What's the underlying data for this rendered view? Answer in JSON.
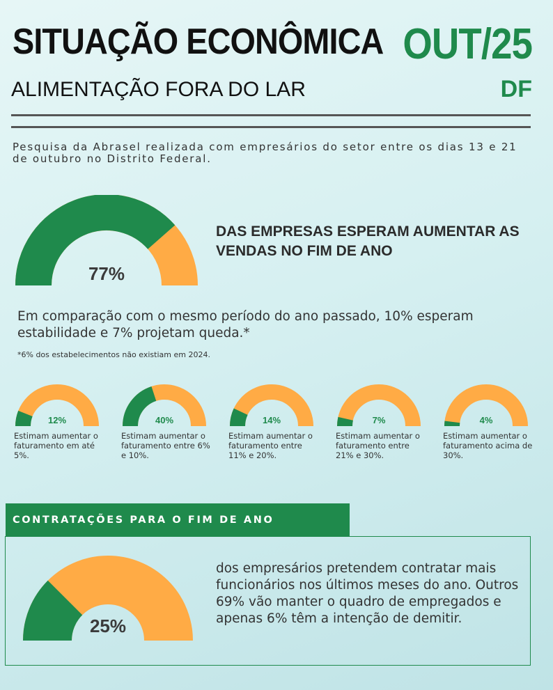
{
  "header": {
    "title": "SITUAÇÃO ECONÔMICA",
    "subtitle": "ALIMENTAÇÃO FORA DO LAR",
    "period": "OUT/25",
    "region": "DF"
  },
  "intro": "Pesquisa da Abrasel realizada com empresários do setor entre os dias 13 e 21 de outubro no Distrito Federal.",
  "colors": {
    "green": "#1f8a4c",
    "orange": "#ffab45"
  },
  "sales": {
    "percent_label": "77%",
    "percent": 77,
    "headline": "DAS EMPRESAS ESPERAM AUMENTAR AS VENDAS NO FIM DE ANO",
    "comparison": "Em comparação com o mesmo período do ano passado, 10% esperam estabilidade e 7% projetam queda.*",
    "footnote": "*6% dos estabelecimentos não existiam em 2024."
  },
  "revenue_gauges": [
    {
      "percent": 12,
      "label": "12%",
      "description": "Estimam aumentar o faturamento em até 5%."
    },
    {
      "percent": 40,
      "label": "40%",
      "description": "Estimam aumentar o faturamento entre 6% e 10%."
    },
    {
      "percent": 14,
      "label": "14%",
      "description": "Estimam aumentar o faturamento entre 11% e 20%."
    },
    {
      "percent": 7,
      "label": "7%",
      "description": "Estimam aumentar o faturamento entre 21% e 30%."
    },
    {
      "percent": 4,
      "label": "4%",
      "description": "Estimam aumentar o faturamento acima de 30%."
    }
  ],
  "hiring": {
    "section_title": "CONTRATAÇÕES PARA O FIM DE ANO",
    "percent_label": "25%",
    "percent": 25,
    "text": "dos empresários pretendem contratar mais funcionários nos últimos meses do ano. Outros 69% vão manter o quadro de empregados e apenas 6% têm a intenção de demitir."
  }
}
